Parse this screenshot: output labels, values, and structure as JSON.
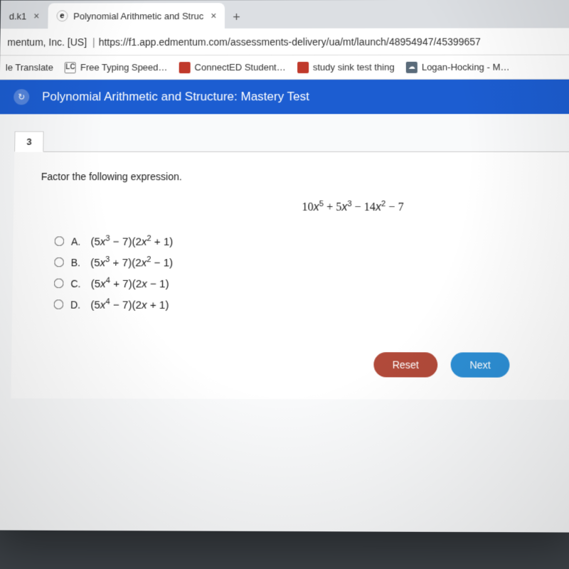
{
  "tabs": {
    "inactive": {
      "title": "d.k1",
      "close": "×"
    },
    "active": {
      "favicon_letter": "e",
      "title": "Polynomial Arithmetic and Struc",
      "close": "×"
    },
    "newtab_glyph": "+"
  },
  "address": {
    "security": "mentum, Inc. [US]",
    "separator": "|",
    "url": "https://f1.app.edmentum.com/assessments-delivery/ua/mt/launch/48954947/45399657"
  },
  "bookmarks": {
    "b0": "le Translate",
    "b1_icon": "LC",
    "b1": "Free Typing Speed…",
    "b2": "ConnectED Student…",
    "b3": "study sink test thing",
    "b4_icon": "☁",
    "b4": "Logan-Hocking - M…"
  },
  "bluebar": {
    "nav_glyph": "↻",
    "title": "Polynomial Arithmetic and Structure: Mastery Test"
  },
  "question": {
    "number": "3",
    "prompt": "Factor the following expression.",
    "expression_html": "10x⁵ + 5x³ − 14x² − 7",
    "options": {
      "A": {
        "letter": "A.",
        "math": "(5x³ − 7)(2x² + 1)"
      },
      "B": {
        "letter": "B.",
        "math": "(5x³ + 7)(2x² − 1)"
      },
      "C": {
        "letter": "C.",
        "math": "(5x⁴ + 7)(2x − 1)"
      },
      "D": {
        "letter": "D.",
        "math": "(5x⁴ − 7)(2x + 1)"
      }
    },
    "buttons": {
      "reset": "Reset",
      "next": "Next"
    }
  },
  "colors": {
    "bluebar": "#1c5dd1",
    "reset_btn": "#b14a3a",
    "next_btn": "#2d8fd5",
    "tabstrip": "#dcdfe3",
    "content_bg": "#f9fafb"
  }
}
